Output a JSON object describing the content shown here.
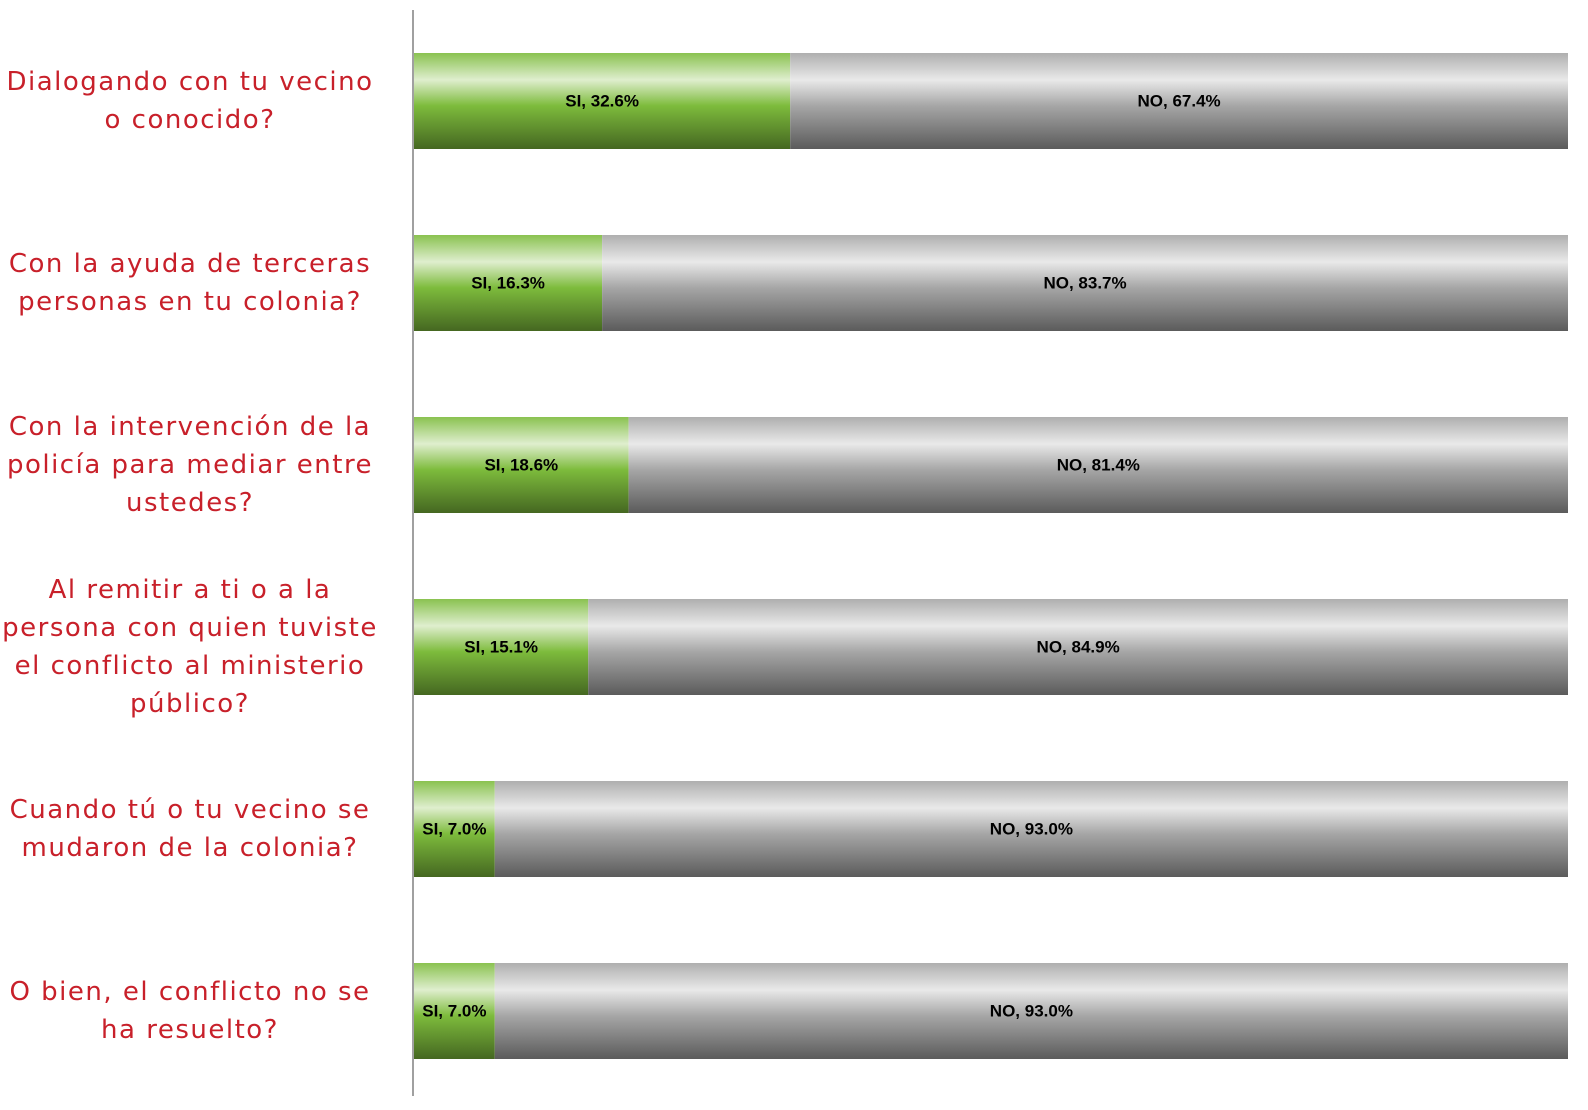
{
  "chart_data": {
    "type": "stacked-bar-horizontal",
    "categories": [
      "Dialogando con tu vecino o conocido?",
      "Con la ayuda de terceras personas en tu colonia?",
      "Con la intervención de la policía para mediar entre ustedes?",
      "Al remitir a ti o a la persona con quien tuviste el conflicto al ministerio público?",
      "Cuando tú o tu vecino se mudaron de la colonia?",
      "O bien, el conflicto no se ha resuelto?"
    ],
    "series": [
      {
        "name": "SI",
        "color": "#7dbb3c",
        "values": [
          32.6,
          16.3,
          18.6,
          15.1,
          7.0,
          7.0
        ],
        "value_labels": [
          "SI, 32.6%",
          "SI, 16.3%",
          "SI, 18.6%",
          "SI, 15.1%",
          "SI, 7.0%",
          "SI, 7.0%"
        ]
      },
      {
        "name": "NO",
        "color": "#a6a6a6",
        "values": [
          67.4,
          83.7,
          81.4,
          84.9,
          93.0,
          93.0
        ],
        "value_labels": [
          "NO, 67.4%",
          "NO, 83.7%",
          "NO, 81.4%",
          "NO, 84.9%",
          "NO, 93.0%",
          "NO, 93.0%"
        ]
      }
    ],
    "xlim": [
      0,
      100
    ]
  }
}
